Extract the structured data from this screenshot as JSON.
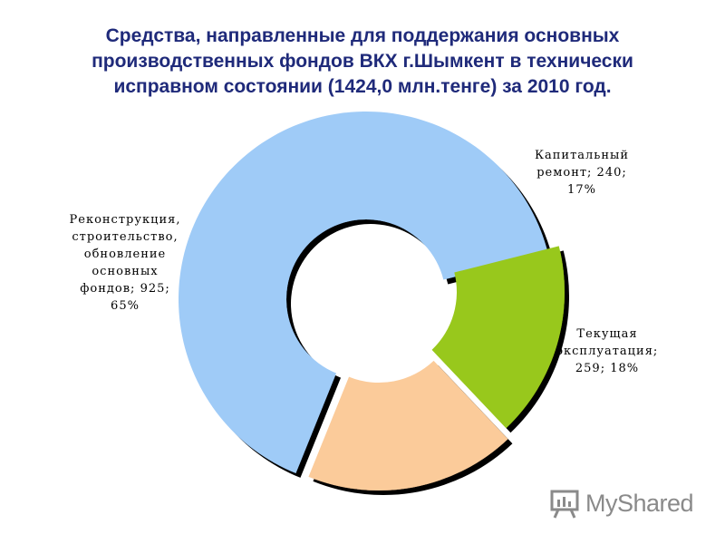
{
  "title_lines": [
    "Средства, направленные для поддержания основных",
    "производственных фондов ВКХ г.Шымкент в технически",
    "исправном состоянии (1424,0 млн.тенге) за 2010 год."
  ],
  "chart_data": {
    "type": "pie",
    "style": "exploded donut",
    "title": "Средства, направленные для поддержания основных производственных фондов ВКХ г.Шымкент в технически исправном состоянии (1424,0 млн.тенге) за 2010 год.",
    "total": 1424.0,
    "slices": [
      {
        "name": "Реконструкция, строительство, обновление основных фондов",
        "value": 925,
        "percent": 65,
        "color": "#9fcbf7",
        "label_lines": [
          "Реконструкция,",
          "строительство,",
          "обновление",
          "основных",
          "фондов; 925;",
          "65%"
        ]
      },
      {
        "name": "Капитальный ремонт",
        "value": 240,
        "percent": 17,
        "color": "#98c81a",
        "label_lines": [
          "Капитальный",
          "ремонт; 240;",
          "17%"
        ]
      },
      {
        "name": "Текущая эксплуатация",
        "value": 259,
        "percent": 18,
        "color": "#fbcb9a",
        "label_lines": [
          "Текущая",
          "эксплуатация;",
          "259; 18%"
        ]
      }
    ],
    "legend": "none"
  },
  "watermark": {
    "text": "MyShared",
    "icon": "presentation-board-icon"
  }
}
